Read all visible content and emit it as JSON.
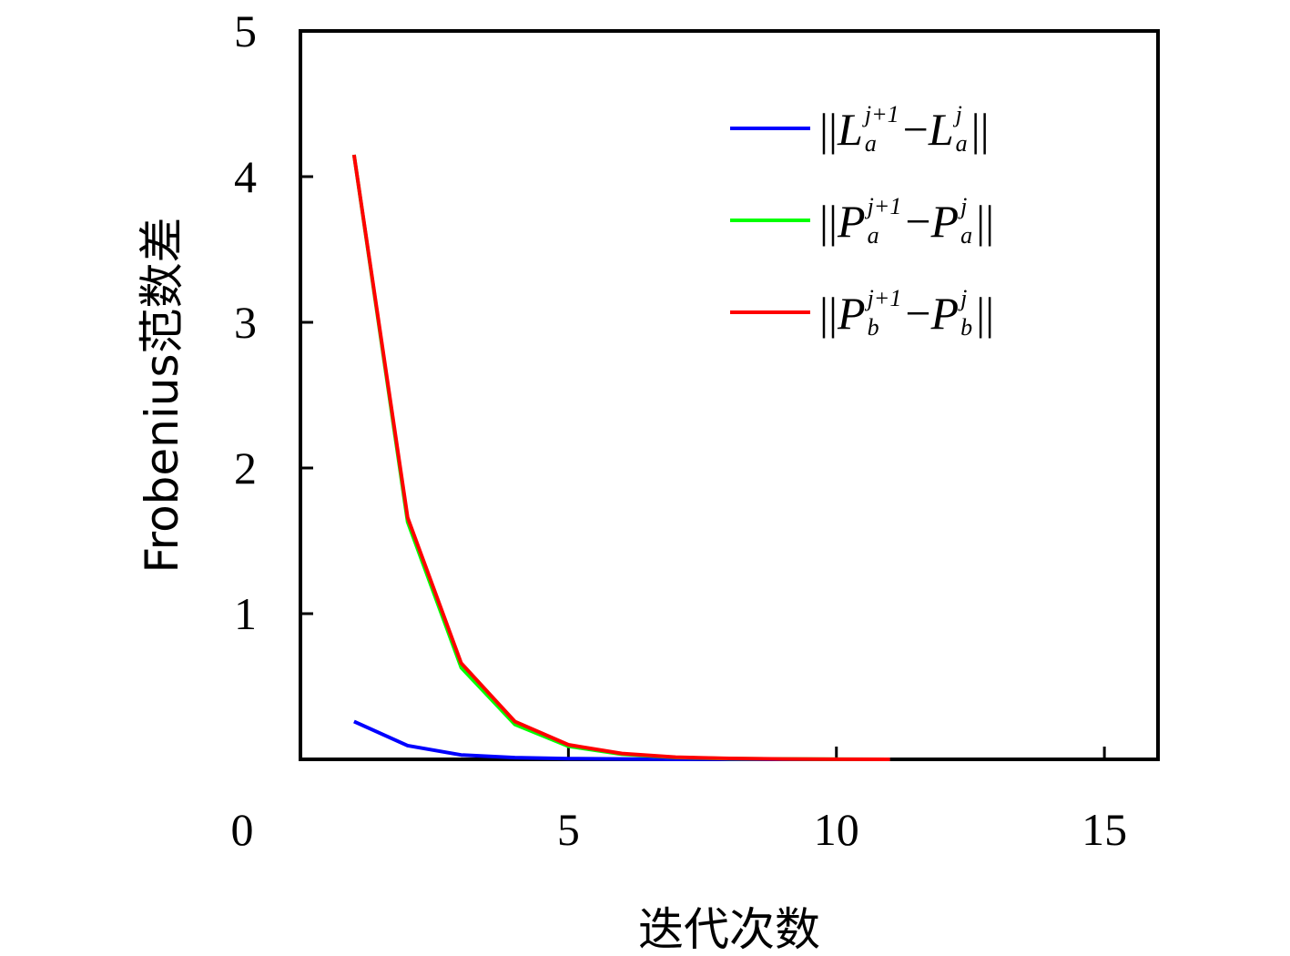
{
  "chart_data": {
    "type": "line",
    "xlabel": "迭代次数",
    "ylabel": "Frobenius范数差",
    "xlim": [
      0,
      16
    ],
    "ylim": [
      0,
      5
    ],
    "xticks": [
      "0",
      "5",
      "10",
      "15"
    ],
    "yticks": [
      "1",
      "2",
      "3",
      "4",
      "5"
    ],
    "grid": false,
    "legend_position": "top-right",
    "x": [
      1,
      2,
      3,
      4,
      5,
      6,
      7,
      8,
      9,
      10,
      11
    ],
    "series": [
      {
        "name": "||L_a^{j+1} - L_a^j||",
        "color": "#0000ff",
        "values": [
          0.26,
          0.094,
          0.03,
          0.012,
          0.005,
          0.002,
          0.001,
          0.0005,
          0.0002,
          0.0001,
          0.0
        ]
      },
      {
        "name": "||P_a^{j+1} - P_a^j||",
        "color": "#00ff00",
        "values": [
          4.15,
          1.63,
          0.63,
          0.24,
          0.09,
          0.035,
          0.013,
          0.005,
          0.002,
          0.001,
          0.0
        ]
      },
      {
        "name": "||P_b^{j+1} - P_b^j||",
        "color": "#ff0000",
        "values": [
          4.15,
          1.66,
          0.66,
          0.26,
          0.1,
          0.04,
          0.015,
          0.006,
          0.002,
          0.001,
          0.0
        ]
      }
    ],
    "legend": [
      {
        "base": "L",
        "sub": "a",
        "sup": "j+1",
        "color": "#0000ff"
      },
      {
        "base": "P",
        "sub": "a",
        "sup": "j+1",
        "color": "#00ff00"
      },
      {
        "base": "P",
        "sub": "b",
        "sup": "j+1",
        "color": "#ff0000"
      }
    ]
  }
}
